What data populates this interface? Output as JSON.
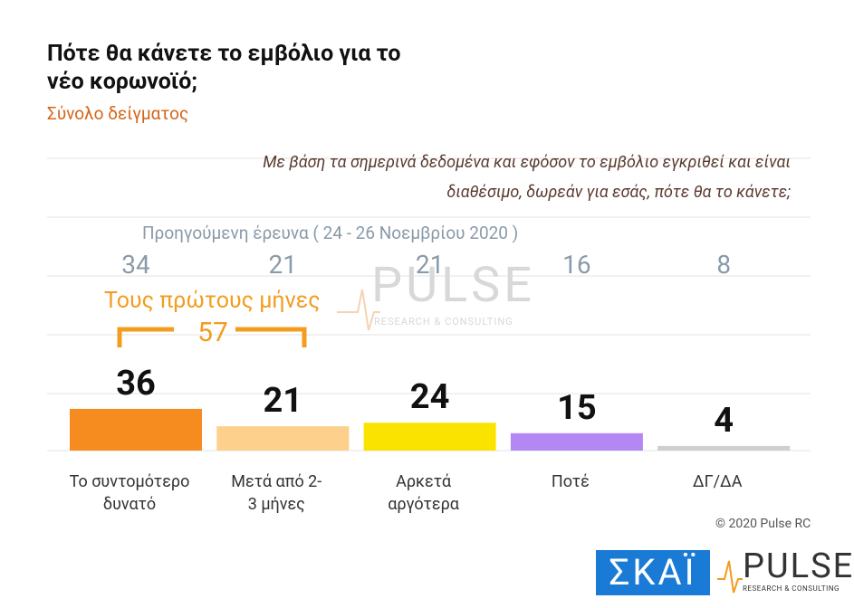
{
  "chart_data": {
    "type": "bar",
    "title": "Πότε θα κάνετε το εμβόλιο για το νέο κορωνοϊό;",
    "subtitle": "Σύνολο δείγματος",
    "question": "Με βάση τα σημερινά δεδομένα και εφόσον το εμβόλιο εγκριθεί και είναι διαθέσιμο, δωρεάν για εσάς, πότε θα το κάνετε;",
    "categories": [
      "Το συντομότερο δυνατό",
      "Μετά από 2-3 μήνες",
      "Αρκετά αργότερα",
      "Ποτέ",
      "ΔΓ/ΔΑ"
    ],
    "values": [
      36,
      21,
      24,
      15,
      4
    ],
    "colors": [
      "#f68b1f",
      "#fdd08b",
      "#fbe300",
      "#b388f2",
      "#cfcfcf"
    ],
    "previous": {
      "label": "Προηγούμενη έρευνα  ( 24 - 26  Νοεμβρίου  2020 )",
      "values": [
        34,
        21,
        21,
        16,
        8
      ]
    },
    "bracket": {
      "label": "Τους πρώτους μήνες",
      "value": 57
    },
    "copyright": "© 2020 Pulse RC",
    "watermark": {
      "name": "PULSE",
      "tagline": "RESEARCH & CONSULTING"
    },
    "logos": {
      "skai": "ΣΚΑΪ",
      "pulse": "PULSE",
      "pulse_tagline": "RESEARCH & CONSULTING"
    }
  }
}
